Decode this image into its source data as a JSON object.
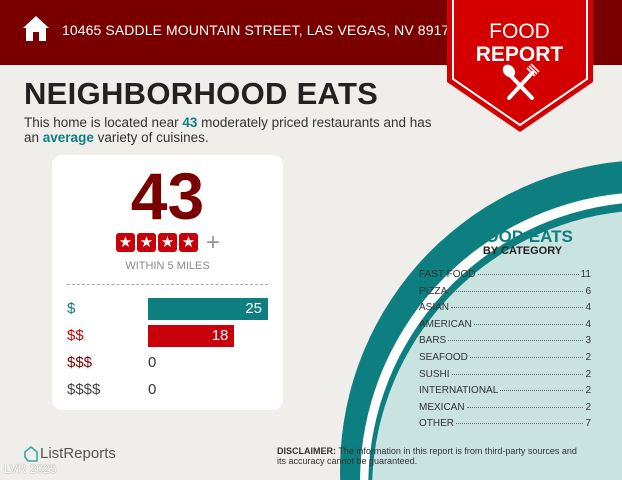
{
  "header": {
    "address": "10465 SADDLE MOUNTAIN STREET, LAS VEGAS, NV 89178",
    "badge_line1": "FOOD",
    "badge_line2": "REPORT"
  },
  "main": {
    "title": "NEIGHBORHOOD EATS",
    "summary_pre": "This home is located near ",
    "summary_count": "43",
    "summary_mid": " moderately priced restaurants and has an ",
    "summary_variety": "average",
    "summary_post": " variety of cuisines."
  },
  "score": {
    "count": "43",
    "rating_stars": 4,
    "plus": "+",
    "radius": "WITHIN 5 MILES"
  },
  "price_tiers": [
    {
      "label": "$",
      "value": 25,
      "color": "#0e7f80"
    },
    {
      "label": "$$",
      "value": 18,
      "color": "#c8000a"
    },
    {
      "label": "$$$",
      "value": 0,
      "color": "#7a0000"
    },
    {
      "label": "$$$$",
      "value": 0,
      "color": "#444444"
    }
  ],
  "categories": {
    "title": "GOOD EATS",
    "subtitle": "BY CATEGORY",
    "items": [
      {
        "name": "FAST FOOD",
        "count": "11"
      },
      {
        "name": "PIZZA",
        "count": "6"
      },
      {
        "name": "ASIAN",
        "count": "4"
      },
      {
        "name": "AMERICAN",
        "count": "4"
      },
      {
        "name": "BARS",
        "count": "3"
      },
      {
        "name": "SEAFOOD",
        "count": "2"
      },
      {
        "name": "SUSHI",
        "count": "2"
      },
      {
        "name": "INTERNATIONAL",
        "count": "2"
      },
      {
        "name": "MEXICAN",
        "count": "2"
      },
      {
        "name": "OTHER",
        "count": "7"
      }
    ]
  },
  "footer": {
    "logo": "ListReports",
    "watermark": "LVR 2025",
    "disclaimer_label": "DISCLAIMER:",
    "disclaimer_text": " The information in this report is from third-party sources and its accuracy cannot be guaranteed."
  },
  "colors": {
    "header": "#7a0000",
    "ribbon": "#d40000",
    "teal": "#0e7f80",
    "circle_fill": "#c8e3e0"
  }
}
